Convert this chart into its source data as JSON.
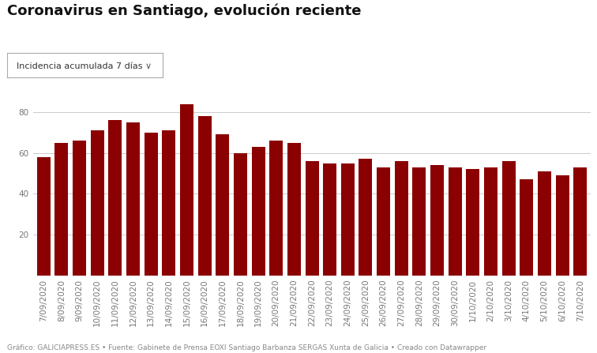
{
  "title": "Coronavirus en Santiago, evolución reciente",
  "dropdown_label": "Incidencia acumulada 7 días",
  "bar_color": "#8B0000",
  "background_color": "#ffffff",
  "footer": "Gráfico: GALICIAPRESS.ES • Fuente: Gabinete de Prensa EOXI Santiago Barbanza SERGAS Xunta de Galicia • Creado con Datawrapper",
  "categories": [
    "7/09/2020",
    "8/09/2020",
    "9/09/2020",
    "10/09/2020",
    "11/09/2020",
    "12/09/2020",
    "13/09/2020",
    "14/09/2020",
    "15/09/2020",
    "16/09/2020",
    "17/09/2020",
    "18/09/2020",
    "19/09/2020",
    "20/09/2020",
    "21/09/2020",
    "22/09/2020",
    "23/09/2020",
    "24/09/2020",
    "25/09/2020",
    "26/09/2020",
    "27/09/2020",
    "28/09/2020",
    "29/09/2020",
    "30/09/2020",
    "1/10/2020",
    "2/10/2020",
    "3/10/2020",
    "4/10/2020",
    "5/10/2020",
    "6/10/2020",
    "7/10/2020"
  ],
  "values": [
    58,
    65,
    66,
    71,
    76,
    75,
    70,
    71,
    84,
    78,
    69,
    60,
    63,
    66,
    65,
    56,
    55,
    55,
    57,
    53,
    56,
    53,
    54,
    53,
    52,
    53,
    56,
    47,
    51,
    49,
    53
  ],
  "ylim": [
    0,
    90
  ],
  "yticks": [
    20,
    40,
    60,
    80
  ],
  "grid_color": "#cccccc",
  "tick_color": "#777777",
  "title_fontsize": 13,
  "tick_fontsize": 7.5,
  "footer_fontsize": 6.5,
  "dropdown_fontsize": 8
}
